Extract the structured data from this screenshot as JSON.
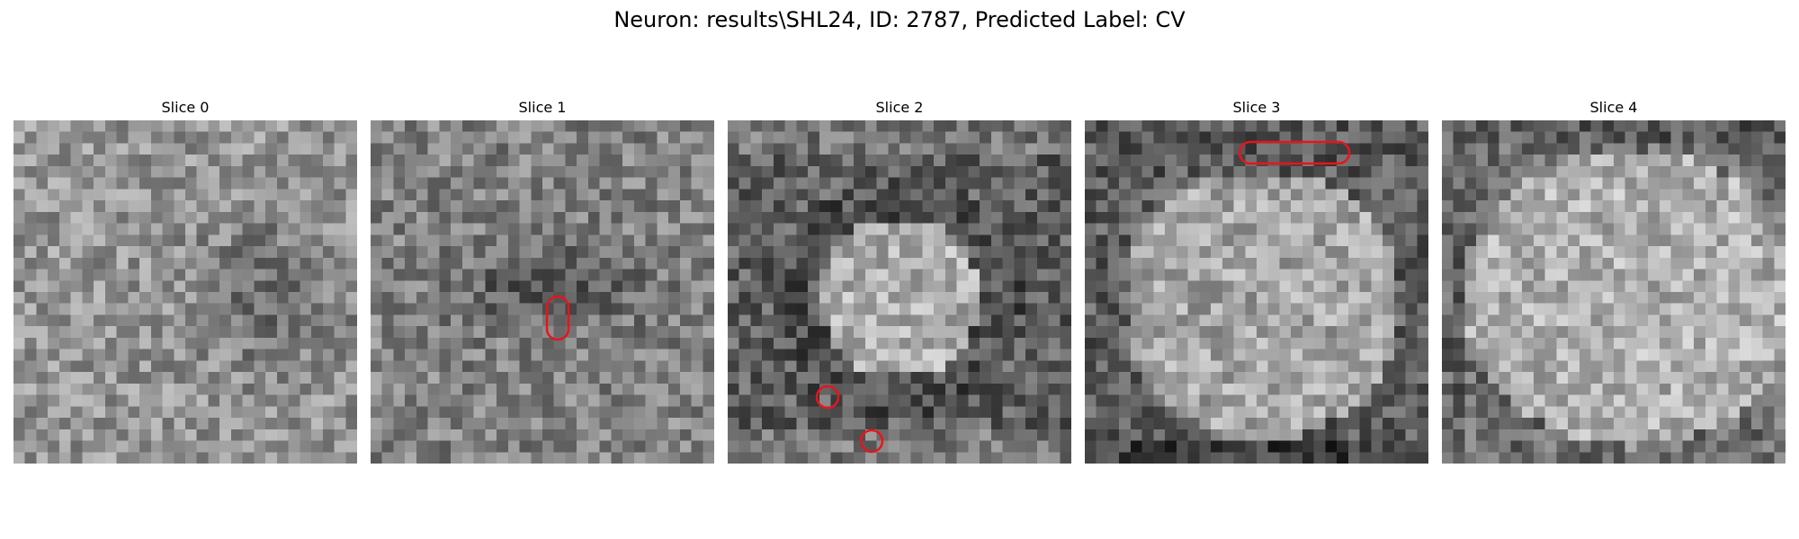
{
  "figure": {
    "title": "Neuron: results\\SHL24, ID: 2787, Predicted Label: CV"
  },
  "panels": [
    {
      "title": "Slice 0",
      "markers": []
    },
    {
      "title": "Slice 1",
      "markers": [
        "vertical-pill"
      ]
    },
    {
      "title": "Slice 2",
      "markers": [
        "small-circle",
        "small-circle"
      ]
    },
    {
      "title": "Slice 3",
      "markers": [
        "horizontal-pill"
      ]
    },
    {
      "title": "Slice 4",
      "markers": []
    }
  ],
  "colors": {
    "background": "#ffffff",
    "marker": "#e8141c",
    "colormap": "gray"
  }
}
